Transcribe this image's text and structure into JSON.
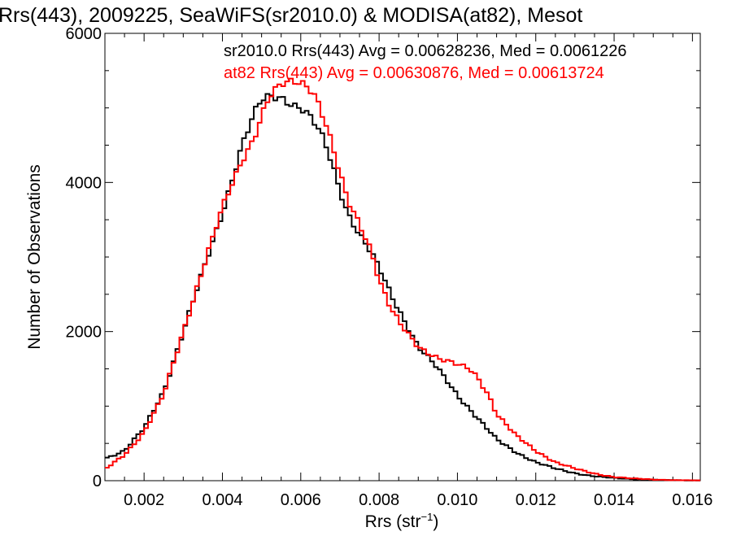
{
  "chart_data": {
    "type": "line",
    "title": "Rrs(443), 2009225, SeaWiFS(sr2010.0) & MODISA(at82), Mesot",
    "xlabel": "Rrs (str",
    "xlabel_sup": "−1",
    "xlabel_close": ")",
    "ylabel": "Number of Observations",
    "xlim": [
      0.001,
      0.0162
    ],
    "ylim": [
      0,
      6000
    ],
    "x_ticks": [
      0.002,
      0.004,
      0.006,
      0.008,
      0.01,
      0.012,
      0.014,
      0.016
    ],
    "x_tick_labels": [
      "0.002",
      "0.004",
      "0.006",
      "0.008",
      "0.010",
      "0.012",
      "0.014",
      "0.016"
    ],
    "y_ticks": [
      0,
      2000,
      4000,
      6000
    ],
    "y_tick_labels": [
      "0",
      "2000",
      "4000",
      "6000"
    ],
    "grid": false,
    "legend_position": "top-right",
    "series": [
      {
        "name": "sr2010.0",
        "legend_text": "sr2010.0 Rrs(443) Avg = 0.00628236, Med = 0.0061226",
        "color": "#000000",
        "x": [
          0.001,
          0.0015,
          0.002,
          0.0025,
          0.003,
          0.0035,
          0.004,
          0.0045,
          0.0048,
          0.005,
          0.0052,
          0.0055,
          0.0058,
          0.006,
          0.0062,
          0.0064,
          0.0066,
          0.0068,
          0.007,
          0.0072,
          0.0075,
          0.0078,
          0.008,
          0.0083,
          0.0086,
          0.009,
          0.0095,
          0.01,
          0.0105,
          0.011,
          0.0115,
          0.012,
          0.0125,
          0.013,
          0.0135,
          0.014,
          0.0145,
          0.015,
          0.0155,
          0.016
        ],
        "values": [
          300,
          400,
          700,
          1200,
          2000,
          2800,
          3600,
          4500,
          4900,
          5100,
          5150,
          5150,
          5050,
          5000,
          4900,
          4750,
          4550,
          4250,
          3900,
          3600,
          3300,
          3050,
          2850,
          2500,
          2200,
          1800,
          1500,
          1150,
          850,
          550,
          380,
          250,
          160,
          100,
          60,
          35,
          20,
          12,
          6,
          3
        ]
      },
      {
        "name": "at82",
        "legend_text": "at82 Rrs(443) Avg = 0.00630876, Med = 0.00613724",
        "color": "#ff0000",
        "x": [
          0.001,
          0.0015,
          0.002,
          0.0025,
          0.003,
          0.0035,
          0.004,
          0.0045,
          0.0048,
          0.005,
          0.0052,
          0.0055,
          0.0058,
          0.006,
          0.0062,
          0.0064,
          0.0066,
          0.0068,
          0.007,
          0.0072,
          0.0075,
          0.0078,
          0.008,
          0.0083,
          0.0086,
          0.009,
          0.0095,
          0.01,
          0.0103,
          0.0105,
          0.0108,
          0.011,
          0.0115,
          0.012,
          0.0125,
          0.013,
          0.0135,
          0.014,
          0.0145,
          0.015,
          0.0155,
          0.016
        ],
        "values": [
          150,
          350,
          650,
          1150,
          2000,
          2850,
          3650,
          4300,
          4600,
          4900,
          5150,
          5300,
          5350,
          5350,
          5300,
          5150,
          4850,
          4500,
          4100,
          3750,
          3450,
          3100,
          2700,
          2300,
          2050,
          1800,
          1650,
          1550,
          1500,
          1400,
          1150,
          900,
          600,
          400,
          250,
          160,
          95,
          50,
          28,
          15,
          8,
          4
        ]
      }
    ]
  }
}
